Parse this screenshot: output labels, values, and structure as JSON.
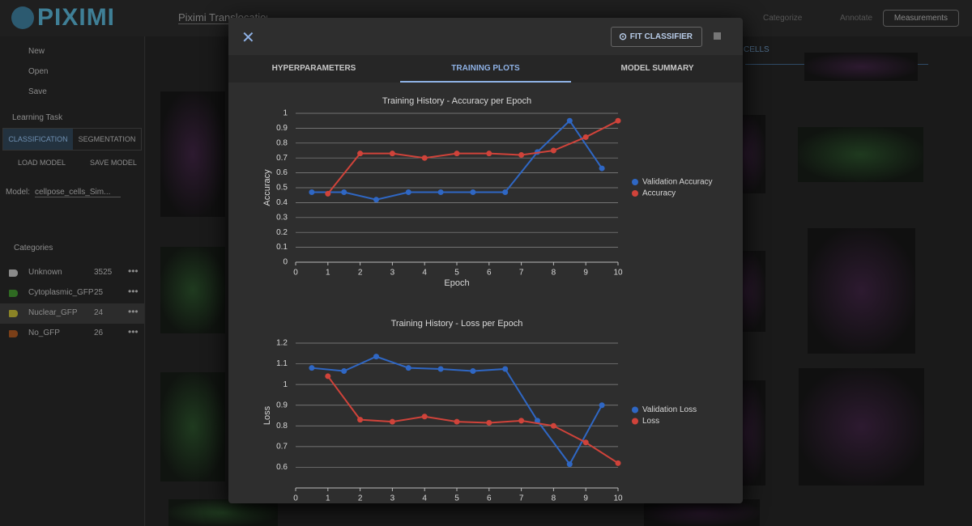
{
  "app": {
    "logo": "PIXIMI",
    "project_name": "Piximi Translocation Tu",
    "toolbar": [
      "Categorize",
      "Annotate",
      "Measurements"
    ],
    "file_menu": [
      "New",
      "Open",
      "Save"
    ],
    "learning_task_label": "Learning Task",
    "task_tabs": [
      "CLASSIFICATION",
      "SEGMENTATION"
    ],
    "model_buttons": [
      "LOAD MODEL",
      "SAVE MODEL"
    ],
    "model_label": "Model:",
    "model_value": "cellpose_cells_Sim...",
    "categories_label": "Categories",
    "categories": [
      {
        "name": "Unknown",
        "count": 3525,
        "color": "#8a8a8a"
      },
      {
        "name": "Cytoplasmic_GFP",
        "count": 25,
        "color": "#2f6a22"
      },
      {
        "name": "Nuclear_GFP",
        "count": 24,
        "color": "#8a8326"
      },
      {
        "name": "No_GFP",
        "count": 26,
        "color": "#7a3f18"
      }
    ],
    "selected_category": 2,
    "grid_tab": "CELLS"
  },
  "dialog": {
    "action": "FIT CLASSIFIER",
    "tabs": [
      "HYPERPARAMETERS",
      "TRAINING PLOTS",
      "MODEL SUMMARY"
    ],
    "active_tab": 1
  },
  "chart_data": [
    {
      "type": "line",
      "title": "Training History - Accuracy per Epoch",
      "x_label": "Epoch",
      "y_label": "Accuracy",
      "xlim": [
        0,
        10
      ],
      "xticks": [
        0,
        1,
        2,
        3,
        4,
        5,
        6,
        7,
        8,
        9,
        10
      ],
      "ylim": [
        0,
        1
      ],
      "yticks": [
        0,
        0.1,
        0.2,
        0.3,
        0.4,
        0.5,
        0.6,
        0.7,
        0.8,
        0.9,
        1
      ],
      "grid": true,
      "legend": "right",
      "series": [
        {
          "name": "Validation Accuracy",
          "color": "#2f67c4",
          "x": [
            0.5,
            1.5,
            2.5,
            3.5,
            4.5,
            5.5,
            6.5,
            7.5,
            8.5,
            9.5
          ],
          "values": [
            0.47,
            0.47,
            0.42,
            0.47,
            0.47,
            0.47,
            0.47,
            0.74,
            0.95,
            0.63
          ]
        },
        {
          "name": "Accuracy",
          "color": "#d0433a",
          "x": [
            1,
            2,
            3,
            4,
            5,
            6,
            7,
            8,
            9,
            10
          ],
          "values": [
            0.46,
            0.73,
            0.73,
            0.7,
            0.73,
            0.73,
            0.72,
            0.75,
            0.84,
            0.95
          ]
        }
      ]
    },
    {
      "type": "line",
      "title": "Training History - Loss per Epoch",
      "x_label": "Epoch",
      "y_label": "Loss",
      "xlim": [
        0,
        10
      ],
      "xticks": [
        0,
        1,
        2,
        3,
        4,
        5,
        6,
        7,
        8,
        9,
        10
      ],
      "ylim": [
        0.5,
        1.2
      ],
      "yticks": [
        0.6,
        0.7,
        0.8,
        0.9,
        1,
        1.1,
        1.2
      ],
      "grid": true,
      "legend": "right",
      "series": [
        {
          "name": "Validation Loss",
          "color": "#2f67c4",
          "x": [
            0.5,
            1.5,
            2.5,
            3.5,
            4.5,
            5.5,
            6.5,
            7.5,
            8.5,
            9.5
          ],
          "values": [
            1.08,
            1.065,
            1.135,
            1.08,
            1.075,
            1.065,
            1.075,
            0.825,
            0.615,
            0.9
          ]
        },
        {
          "name": "Loss",
          "color": "#d0433a",
          "x": [
            1,
            2,
            3,
            4,
            5,
            6,
            7,
            8,
            9,
            10
          ],
          "values": [
            1.04,
            0.83,
            0.82,
            0.845,
            0.82,
            0.815,
            0.825,
            0.8,
            0.72,
            0.62
          ]
        }
      ]
    }
  ]
}
